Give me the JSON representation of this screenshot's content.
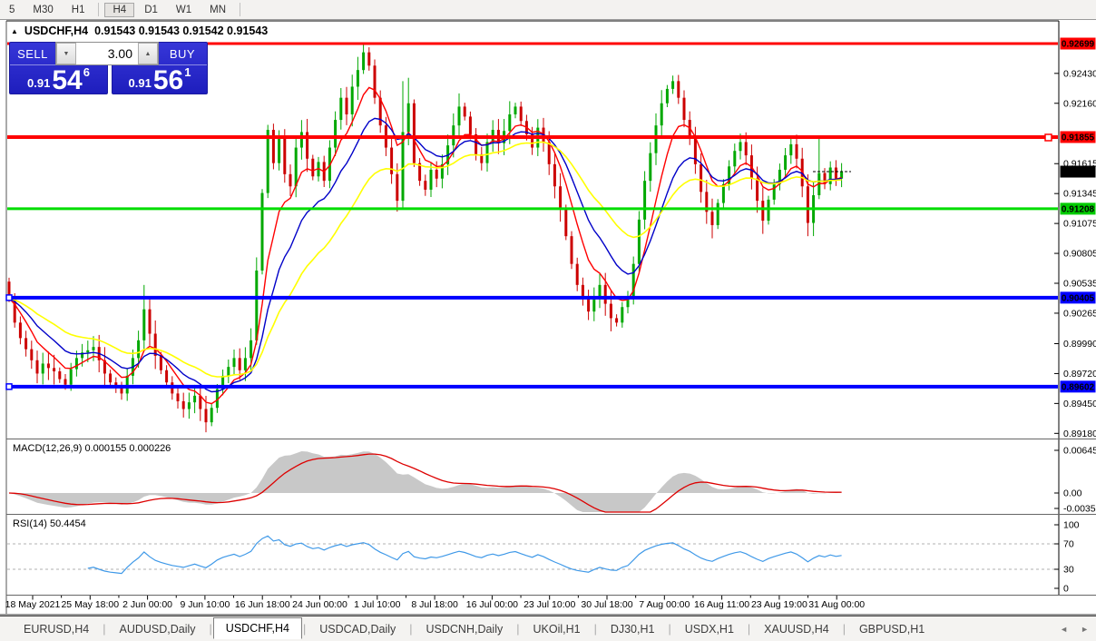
{
  "toolbar": {
    "items": [
      "5",
      "M30",
      "H1",
      "H4",
      "D1",
      "W1",
      "MN"
    ],
    "active": "H4"
  },
  "chart_header": {
    "icon": "▲",
    "symbol": "USDCHF,H4",
    "ohlc": "0.91543 0.91543 0.91542 0.91543"
  },
  "trade_panel": {
    "sell_label": "SELL",
    "buy_label": "BUY",
    "volume": "3.00",
    "step_up_glyph": "▲",
    "step_down_glyph": "▼",
    "bid": {
      "prefix": "0.91",
      "big": "54",
      "sup": "6"
    },
    "ask": {
      "prefix": "0.91",
      "big": "56",
      "sup": "1"
    }
  },
  "chart_data": {
    "type": "candlestick",
    "symbol": "USDCHF",
    "timeframe": "H4",
    "current_price": 0.91543,
    "candle_up_color": "#00a800",
    "candle_down_color": "#cc0000",
    "candles": {
      "first_open": 0.9055,
      "closes": [
        0.904,
        0.9018,
        0.9004,
        0.8994,
        0.8984,
        0.8972,
        0.8981,
        0.8977,
        0.8974,
        0.8967,
        0.8962,
        0.8976,
        0.8986,
        0.8991,
        0.8993,
        0.8996,
        0.8984,
        0.8972,
        0.8964,
        0.8959,
        0.8954,
        0.897,
        0.8986,
        0.9002,
        0.903,
        0.9008,
        0.8988,
        0.8975,
        0.8964,
        0.8954,
        0.8947,
        0.894,
        0.8946,
        0.8952,
        0.894,
        0.8928,
        0.8941,
        0.8958,
        0.897,
        0.8978,
        0.8986,
        0.8975,
        0.8986,
        0.9002,
        0.9065,
        0.9135,
        0.9192,
        0.9162,
        0.9185,
        0.9152,
        0.9141,
        0.9176,
        0.919,
        0.9166,
        0.915,
        0.9163,
        0.9146,
        0.9176,
        0.9201,
        0.9221,
        0.9206,
        0.9231,
        0.9246,
        0.9262,
        0.925,
        0.9221,
        0.9196,
        0.9176,
        0.9152,
        0.9128,
        0.919,
        0.9216,
        0.9162,
        0.9146,
        0.9138,
        0.9156,
        0.9148,
        0.9161,
        0.9178,
        0.9196,
        0.9213,
        0.9204,
        0.9188,
        0.917,
        0.9162,
        0.9181,
        0.9192,
        0.918,
        0.9191,
        0.9206,
        0.9213,
        0.92,
        0.9188,
        0.9176,
        0.9194,
        0.9181,
        0.9161,
        0.9141,
        0.9121,
        0.9096,
        0.9071,
        0.9052,
        0.904,
        0.9028,
        0.9041,
        0.9052,
        0.9035,
        0.9022,
        0.9018,
        0.9032,
        0.9041,
        0.9071,
        0.9111,
        0.9146,
        0.9171,
        0.9196,
        0.9216,
        0.9229,
        0.9236,
        0.9221,
        0.9201,
        0.9186,
        0.9161,
        0.9136,
        0.9118,
        0.9106,
        0.9126,
        0.9143,
        0.9159,
        0.9173,
        0.9181,
        0.9169,
        0.9148,
        0.9128,
        0.911,
        0.9129,
        0.9143,
        0.9156,
        0.9169,
        0.9179,
        0.9166,
        0.9141,
        0.9108,
        0.9133,
        0.9153,
        0.9143,
        0.9158,
        0.9148,
        0.91543
      ],
      "overrides": {
        "24": {
          "h": 0.9052
        },
        "35": {
          "l": 0.8919
        },
        "44": {
          "l": 0.8998
        },
        "63": {
          "h": 0.927
        },
        "70": {
          "h": 0.9236,
          "l": 0.9122
        },
        "71": {
          "h": 0.9239
        },
        "118": {
          "h": 0.9241
        },
        "142": {
          "l": 0.9096
        },
        "144": {
          "h": 0.9186
        }
      }
    },
    "moving_averages": [
      {
        "name": "ma-fast",
        "period": 7,
        "color": "#ff0000",
        "width": 1.4
      },
      {
        "name": "ma-medium",
        "period": 14,
        "color": "#0000c8",
        "width": 1.4
      },
      {
        "name": "ma-slow",
        "period": 28,
        "color": "#ffff00",
        "width": 1.6
      }
    ],
    "levels": [
      {
        "price": 0.92699,
        "color": "#ff0000",
        "width": 3
      },
      {
        "price": 0.91855,
        "color": "#ff0000",
        "width": 4,
        "handle": "right"
      },
      {
        "price": 0.91208,
        "color": "#00dd00",
        "width": 3
      },
      {
        "price": 0.90405,
        "color": "#0000ff",
        "width": 4,
        "handle": "left"
      },
      {
        "price": 0.89602,
        "color": "#0000ff",
        "width": 4,
        "handle": "left"
      }
    ],
    "price_axis": {
      "labels": [
        "0.92430",
        "0.92160",
        "0.91615",
        "0.91345",
        "0.91075",
        "0.90805",
        "0.90535",
        "0.90265",
        "0.89990",
        "0.89720",
        "0.89450",
        "0.89180"
      ],
      "badges": [
        {
          "text": "0.92699",
          "price": 0.92699,
          "bg": "#ff0000",
          "fg": "#ffffff"
        },
        {
          "text": "0.91855",
          "price": 0.91855,
          "bg": "#ff0000",
          "fg": "#ffffff"
        },
        {
          "text": "0.91543",
          "price": 0.91543,
          "bg": "#000000",
          "fg": "#ffffff"
        },
        {
          "text": "0.91208",
          "price": 0.91208,
          "bg": "#00cc00",
          "fg": "#000000"
        },
        {
          "text": "0.90405",
          "price": 0.90405,
          "bg": "#0000ff",
          "fg": "#ffffff"
        },
        {
          "text": "0.89602",
          "price": 0.89602,
          "bg": "#0000ff",
          "fg": "#ffffff"
        }
      ]
    },
    "time_axis": {
      "labels": [
        "18 May 2021",
        "25 May 18:00",
        "2 Jun 00:00",
        "9 Jun 10:00",
        "16 Jun 18:00",
        "24 Jun 00:00",
        "1 Jul 10:00",
        "8 Jul 18:00",
        "16 Jul 00:00",
        "23 Jul 10:00",
        "30 Jul 18:00",
        "7 Aug 00:00",
        "16 Aug 11:00",
        "23 Aug 19:00",
        "31 Aug 00:00"
      ]
    },
    "macd": {
      "label": "MACD(12,26,9)",
      "values": "0.000155 0.000226",
      "fast": 12,
      "slow": 26,
      "signal": 9,
      "axis": [
        "0.006451",
        "0.00",
        "-0.00350"
      ],
      "histogram_color": "#c8c8c8",
      "signal_color": "#dd0000"
    },
    "rsi": {
      "label": "RSI(14)",
      "value": "50.4454",
      "period": 14,
      "axis": [
        "100",
        "70",
        "30",
        "0"
      ],
      "levels": [
        70,
        30
      ],
      "color": "#3f99e8"
    }
  },
  "tab_bar": {
    "tabs": [
      "EURUSD,H4",
      "AUDUSD,Daily",
      "USDCHF,H4",
      "USDCAD,Daily",
      "USDCNH,Daily",
      "UKOil,H1",
      "DJ30,H1",
      "USDX,H1",
      "XAUUSD,H4",
      "GBPUSD,H1"
    ],
    "active_index": 2,
    "scroll_left_glyph": "◄",
    "scroll_right_glyph": "►"
  }
}
